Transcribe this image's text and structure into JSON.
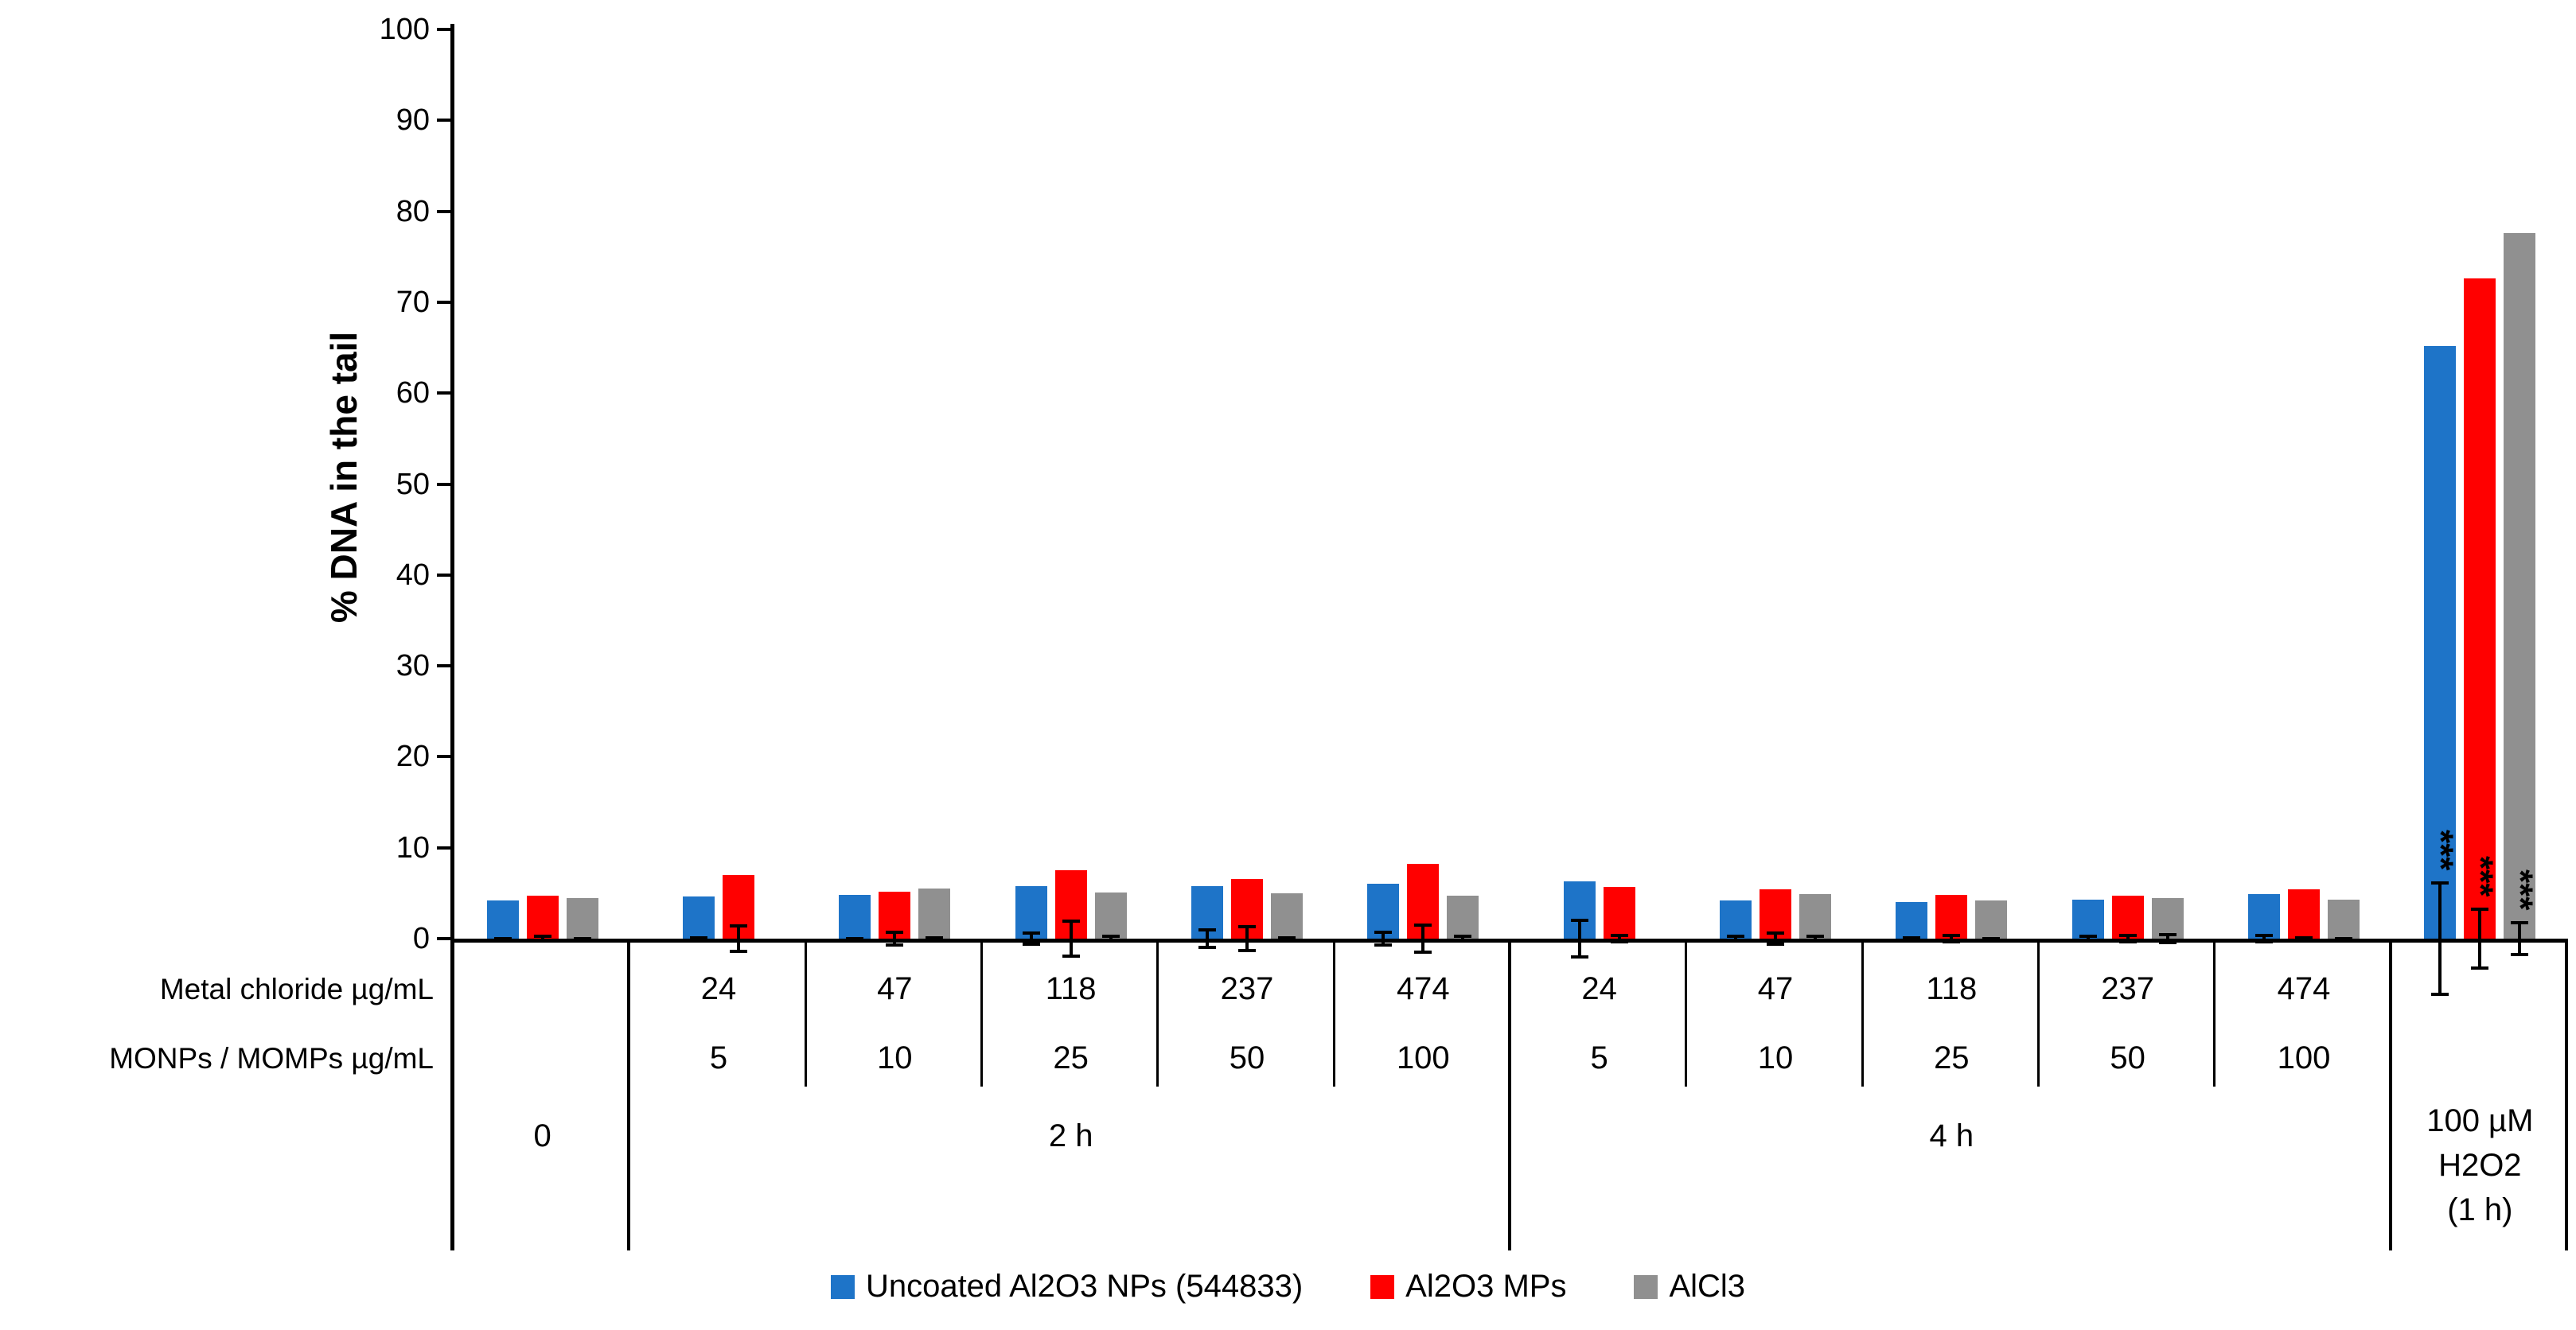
{
  "chart_data": {
    "type": "bar",
    "title": "",
    "ylabel": "% DNA in the tail",
    "ylim": [
      0,
      100
    ],
    "ytick_step": 10,
    "yticks": [
      0,
      10,
      20,
      30,
      40,
      50,
      60,
      70,
      80,
      90,
      100
    ],
    "grid": "off",
    "legend_position": "bottom",
    "significance_marker": "***",
    "series": [
      {
        "name": "Uncoated Al2O3 NPs (544833)",
        "color": "#1E74C8"
      },
      {
        "name": "Al2O3 MPs",
        "color": "#FF0000"
      },
      {
        "name": "AlCl3",
        "color": "#909090"
      }
    ],
    "category_rows": [
      "Metal chloride µg/mL",
      "MONPs / MOMPs µg/mL"
    ],
    "sections": [
      {
        "label": "0",
        "span": 1
      },
      {
        "label": "2 h",
        "span": 5
      },
      {
        "label": "4 h",
        "span": 5
      },
      {
        "label": "100 µM\nH2O2\n(1 h)",
        "span": 1
      }
    ],
    "groups": [
      {
        "metal_chloride": "",
        "monps_momps": "",
        "values": [
          {
            "series": 0,
            "value": 4.2,
            "err": 0.2
          },
          {
            "series": 1,
            "value": 4.7,
            "err": 0.4
          },
          {
            "series": 2,
            "value": 4.5,
            "err": 0.2
          }
        ]
      },
      {
        "metal_chloride": "24",
        "monps_momps": "5",
        "values": [
          {
            "series": 0,
            "value": 4.6,
            "err": 0.3
          },
          {
            "series": 1,
            "value": 7.0,
            "err": 1.6
          }
        ]
      },
      {
        "metal_chloride": "47",
        "monps_momps": "10",
        "values": [
          {
            "series": 0,
            "value": 4.8,
            "err": 0.2
          },
          {
            "series": 1,
            "value": 5.2,
            "err": 0.9
          },
          {
            "series": 2,
            "value": 5.5,
            "err": 0.3
          }
        ]
      },
      {
        "metal_chloride": "118",
        "monps_momps": "25",
        "values": [
          {
            "series": 0,
            "value": 5.8,
            "err": 0.8
          },
          {
            "series": 1,
            "value": 7.5,
            "err": 2.1
          },
          {
            "series": 2,
            "value": 5.1,
            "err": 0.4
          }
        ]
      },
      {
        "metal_chloride": "237",
        "monps_momps": "50",
        "values": [
          {
            "series": 0,
            "value": 5.8,
            "err": 1.1
          },
          {
            "series": 1,
            "value": 6.6,
            "err": 1.5
          },
          {
            "series": 2,
            "value": 5.0,
            "err": 0.3
          }
        ]
      },
      {
        "metal_chloride": "474",
        "monps_momps": "100",
        "values": [
          {
            "series": 0,
            "value": 6.0,
            "err": 0.9
          },
          {
            "series": 1,
            "value": 8.2,
            "err": 1.7
          },
          {
            "series": 2,
            "value": 4.7,
            "err": 0.4
          }
        ]
      },
      {
        "metal_chloride": "24",
        "monps_momps": "5",
        "values": [
          {
            "series": 0,
            "value": 6.3,
            "err": 2.2
          },
          {
            "series": 1,
            "value": 5.7,
            "err": 0.5
          }
        ]
      },
      {
        "metal_chloride": "47",
        "monps_momps": "10",
        "values": [
          {
            "series": 0,
            "value": 4.2,
            "err": 0.4
          },
          {
            "series": 1,
            "value": 5.4,
            "err": 0.8
          },
          {
            "series": 2,
            "value": 4.9,
            "err": 0.4
          }
        ]
      },
      {
        "metal_chloride": "118",
        "monps_momps": "25",
        "values": [
          {
            "series": 0,
            "value": 4.0,
            "err": 0.3
          },
          {
            "series": 1,
            "value": 4.8,
            "err": 0.5
          },
          {
            "series": 2,
            "value": 4.2,
            "err": 0.2
          }
        ]
      },
      {
        "metal_chloride": "237",
        "monps_momps": "50",
        "values": [
          {
            "series": 0,
            "value": 4.3,
            "err": 0.4
          },
          {
            "series": 1,
            "value": 4.7,
            "err": 0.5
          },
          {
            "series": 2,
            "value": 4.5,
            "err": 0.6
          }
        ]
      },
      {
        "metal_chloride": "474",
        "monps_momps": "100",
        "values": [
          {
            "series": 0,
            "value": 4.9,
            "err": 0.5
          },
          {
            "series": 1,
            "value": 5.4,
            "err": 0.3
          },
          {
            "series": 2,
            "value": 4.3,
            "err": 0.2
          }
        ]
      },
      {
        "metal_chloride": "",
        "monps_momps": "",
        "values": [
          {
            "series": 0,
            "value": 65.2,
            "err": 6.3,
            "sig": "***"
          },
          {
            "series": 1,
            "value": 72.6,
            "err": 3.4,
            "sig": "***"
          },
          {
            "series": 2,
            "value": 77.6,
            "err": 1.9,
            "sig": "***"
          }
        ]
      }
    ]
  }
}
